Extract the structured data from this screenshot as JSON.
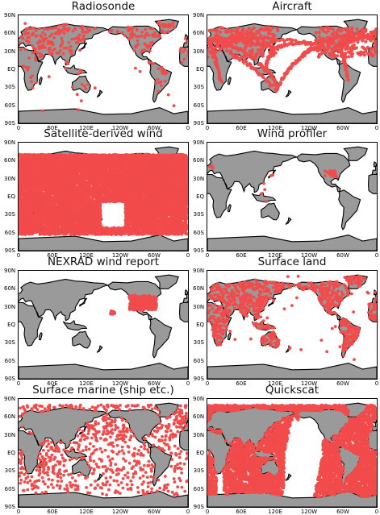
{
  "panels": [
    {
      "id": "radiosonde",
      "title": "Radiosonde",
      "coverage": "stations"
    },
    {
      "id": "aircraft",
      "title": "Aircraft",
      "coverage": "flight-routes"
    },
    {
      "id": "satellite-derived-wind",
      "title": "Satellite-derived wind",
      "coverage": "dense-band"
    },
    {
      "id": "wind-profiler",
      "title": "Wind profiler",
      "coverage": "sparse"
    },
    {
      "id": "nexrad-wind-report",
      "title": "NEXRAD wind report",
      "coverage": "north-america"
    },
    {
      "id": "surface-land",
      "title": "Surface land",
      "coverage": "land"
    },
    {
      "id": "surface-marine",
      "title": "Surface marine (ship etc.)",
      "coverage": "ocean"
    },
    {
      "id": "quickscat",
      "title": "Quickscat",
      "coverage": "swaths"
    }
  ],
  "lat_labels": [
    "90N",
    "60N",
    "30N",
    "EQ",
    "30S",
    "60S",
    "90S"
  ],
  "lon_labels": [
    "0",
    "60E",
    "120E",
    "120W",
    "60W",
    "0"
  ],
  "colors": {
    "observation": "#f24b4b",
    "land": "#9a9a9a",
    "ocean": "#ffffff",
    "coastline": "#000000"
  }
}
